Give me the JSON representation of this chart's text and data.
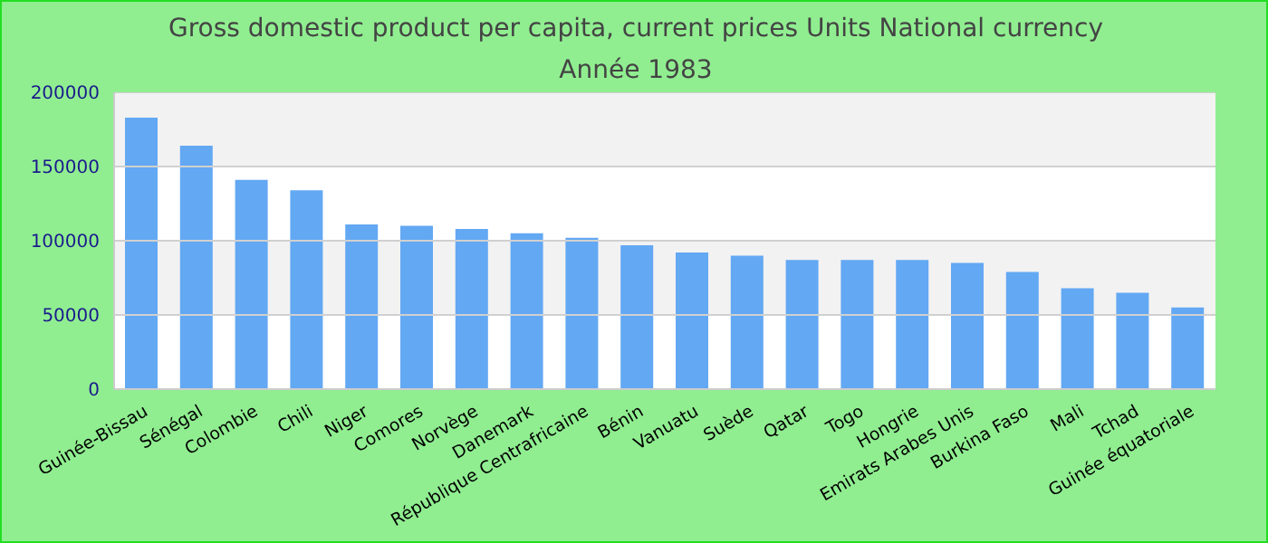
{
  "chart_data": {
    "type": "bar",
    "title": "Gross domestic product per capita, current prices Units National currency",
    "subtitle": "Année 1983",
    "categories": [
      "Guinée-Bissau",
      "Sénégal",
      "Colombie",
      "Chili",
      "Niger",
      "Comores",
      "Norvège",
      "Danemark",
      "République Centrafricaine",
      "Bénin",
      "Vanuatu",
      "Suède",
      "Qatar",
      "Togo",
      "Hongrie",
      "Emirats Arabes Unis",
      "Burkina Faso",
      "Mali",
      "Tchad",
      "Guinée équatoriale"
    ],
    "values": [
      183000,
      164000,
      141000,
      134000,
      111000,
      110000,
      108000,
      105000,
      102000,
      97000,
      92000,
      90000,
      87000,
      87000,
      87000,
      85000,
      79000,
      68000,
      65000,
      55000
    ],
    "color": "#63a8f3",
    "ylim": [
      0,
      200000
    ],
    "yticks": [
      0,
      50000,
      100000,
      150000,
      200000
    ],
    "grid": "y"
  }
}
